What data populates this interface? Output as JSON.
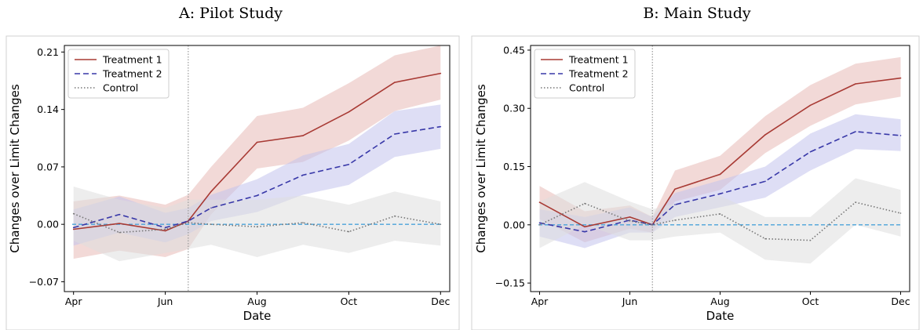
{
  "chart_data": [
    {
      "type": "line",
      "title": "A: Pilot Study",
      "xlabel": "Date",
      "ylabel": "Changes over Limit Changes",
      "x": [
        0,
        1,
        2,
        2.3,
        2.6,
        3,
        4,
        5,
        6,
        7,
        8,
        9
      ],
      "xticks": [
        {
          "pos": 0,
          "label": "Apr"
        },
        {
          "pos": 2,
          "label": "Jun"
        },
        {
          "pos": 4,
          "label": "Aug"
        },
        {
          "pos": 6,
          "label": "Oct"
        },
        {
          "pos": 8,
          "label": "Dec"
        }
      ],
      "yticks": [
        -0.07,
        0.0,
        0.07,
        0.14,
        0.21
      ],
      "ytick_labels": [
        "−0.07",
        "0.00",
        "0.07",
        "0.14",
        "0.21"
      ],
      "xlim": [
        -0.2,
        8.2
      ],
      "ylim": [
        -0.082,
        0.218
      ],
      "vline_x": 2.5,
      "series": [
        {
          "name": "Treatment 1",
          "color": "#a83a34",
          "dash": "solid",
          "x": [
            0,
            1,
            2,
            2.5,
            3,
            4,
            5,
            6,
            7,
            8
          ],
          "values": [
            -0.006,
            0.001,
            -0.008,
            0.004,
            0.04,
            0.1,
            0.108,
            0.137,
            0.173,
            0.184
          ],
          "lower": [
            -0.042,
            -0.032,
            -0.04,
            -0.03,
            0.012,
            0.068,
            0.076,
            0.102,
            0.138,
            0.152
          ],
          "upper": [
            0.028,
            0.035,
            0.024,
            0.036,
            0.07,
            0.132,
            0.142,
            0.172,
            0.206,
            0.218
          ],
          "band_color": "#e8b9b6"
        },
        {
          "name": "Treatment 2",
          "color": "#3838a8",
          "dash": "dashed",
          "x": [
            0,
            1,
            2,
            2.5,
            3,
            4,
            5,
            6,
            7,
            8
          ],
          "values": [
            -0.004,
            0.012,
            -0.004,
            0.004,
            0.02,
            0.035,
            0.06,
            0.073,
            0.11,
            0.119
          ],
          "lower": [
            -0.026,
            -0.01,
            -0.022,
            -0.012,
            0.004,
            0.015,
            0.036,
            0.048,
            0.082,
            0.092
          ],
          "upper": [
            0.018,
            0.034,
            0.014,
            0.02,
            0.036,
            0.055,
            0.084,
            0.098,
            0.138,
            0.146
          ],
          "band_color": "#c3c3ec"
        },
        {
          "name": "Control",
          "color": "#777777",
          "dash": "dotted",
          "x": [
            0,
            1,
            2,
            2.5,
            3,
            4,
            5,
            6,
            7,
            8
          ],
          "values": [
            0.013,
            -0.01,
            -0.006,
            0.002,
            0.0,
            -0.003,
            0.002,
            -0.009,
            0.01,
            0.0
          ],
          "lower": [
            -0.02,
            -0.045,
            -0.035,
            -0.03,
            -0.025,
            -0.04,
            -0.025,
            -0.035,
            -0.02,
            -0.026
          ],
          "upper": [
            0.046,
            0.03,
            0.02,
            0.03,
            0.03,
            0.03,
            0.035,
            0.024,
            0.04,
            0.028
          ],
          "band_color": "#dedede"
        }
      ],
      "baseline": {
        "value": 0.0,
        "color": "#4aa3d9"
      },
      "legend": "top-left",
      "grid": false
    },
    {
      "type": "line",
      "title": "B: Main Study",
      "xlabel": "Date",
      "ylabel": "Changes over Limit Changes",
      "xticks": [
        {
          "pos": 0,
          "label": "Apr"
        },
        {
          "pos": 2,
          "label": "Jun"
        },
        {
          "pos": 4,
          "label": "Aug"
        },
        {
          "pos": 6,
          "label": "Oct"
        },
        {
          "pos": 8,
          "label": "Dec"
        }
      ],
      "yticks": [
        -0.15,
        0.0,
        0.15,
        0.3,
        0.45
      ],
      "ytick_labels": [
        "−0.15",
        "0.00",
        "0.15",
        "0.30",
        "0.45"
      ],
      "xlim": [
        -0.2,
        8.2
      ],
      "ylim": [
        -0.172,
        0.462
      ],
      "vline_x": 2.5,
      "series": [
        {
          "name": "Treatment 1",
          "color": "#a83a34",
          "dash": "solid",
          "x": [
            0,
            1,
            2,
            2.5,
            3,
            4,
            5,
            6,
            7,
            8
          ],
          "values": [
            0.058,
            -0.005,
            0.02,
            0.0,
            0.092,
            0.13,
            0.232,
            0.308,
            0.363,
            0.378
          ],
          "lower": [
            0.015,
            -0.045,
            -0.01,
            -0.02,
            0.06,
            0.09,
            0.185,
            0.255,
            0.31,
            0.33
          ],
          "upper": [
            0.1,
            0.035,
            0.05,
            0.02,
            0.14,
            0.178,
            0.28,
            0.36,
            0.415,
            0.432
          ],
          "band_color": "#e8b9b6"
        },
        {
          "name": "Treatment 2",
          "color": "#3838a8",
          "dash": "dashed",
          "x": [
            0,
            1,
            2,
            2.5,
            3,
            4,
            5,
            6,
            7,
            8
          ],
          "values": [
            0.005,
            -0.018,
            0.012,
            0.0,
            0.052,
            0.08,
            0.112,
            0.188,
            0.24,
            0.23
          ],
          "lower": [
            -0.03,
            -0.06,
            -0.02,
            -0.02,
            0.02,
            0.045,
            0.07,
            0.14,
            0.195,
            0.19
          ],
          "upper": [
            0.04,
            0.02,
            0.045,
            0.02,
            0.082,
            0.115,
            0.15,
            0.235,
            0.285,
            0.272
          ],
          "band_color": "#c3c3ec"
        },
        {
          "name": "Control",
          "color": "#777777",
          "dash": "dotted",
          "x": [
            0,
            1,
            2,
            2.5,
            3,
            4,
            5,
            6,
            7,
            8
          ],
          "values": [
            0.0,
            0.055,
            0.01,
            0.0,
            0.012,
            0.028,
            -0.036,
            -0.04,
            0.058,
            0.03
          ],
          "lower": [
            -0.06,
            0.0,
            -0.04,
            -0.04,
            -0.03,
            -0.02,
            -0.09,
            -0.1,
            0.0,
            -0.03
          ],
          "upper": [
            0.06,
            0.11,
            0.06,
            0.04,
            0.055,
            0.075,
            0.02,
            0.02,
            0.12,
            0.09
          ],
          "band_color": "#dedede"
        }
      ],
      "baseline": {
        "value": 0.0,
        "color": "#4aa3d9"
      },
      "legend": "top-left",
      "grid": false
    }
  ]
}
